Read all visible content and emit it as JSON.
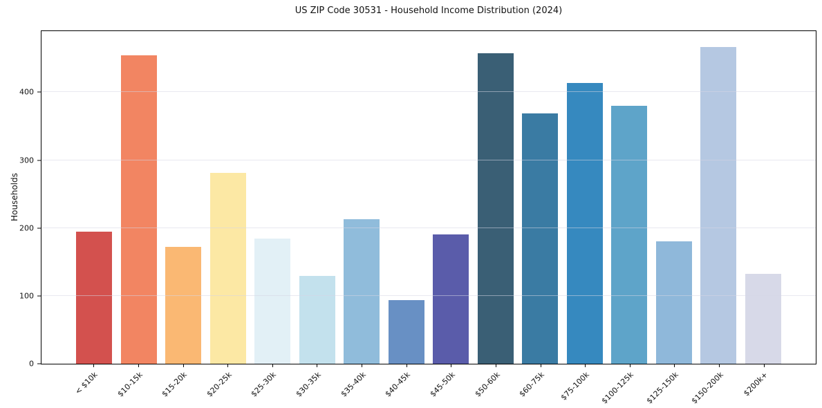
{
  "title": "US ZIP Code 30531 - Household Income Distribution (2024)",
  "chart_data": {
    "type": "bar",
    "title": "US ZIP Code 30531 - Household Income Distribution (2024)",
    "xlabel": "",
    "ylabel": "Households",
    "categories": [
      "< $10k",
      "$10-15k",
      "$15-20k",
      "$20-25k",
      "$25-30k",
      "$30-35k",
      "$35-40k",
      "$40-45k",
      "$45-50k",
      "$50-60k",
      "$60-75k",
      "$75-100k",
      "$100-125k",
      "$125-150k",
      "$150-200k",
      "$200k+"
    ],
    "values": [
      195,
      454,
      172,
      281,
      184,
      129,
      213,
      94,
      191,
      457,
      369,
      414,
      380,
      180,
      467,
      132
    ],
    "bar_colors": [
      "#d3514e",
      "#f28562",
      "#fab873",
      "#fce8a4",
      "#e2f0f6",
      "#c3e1ed",
      "#90bcdb",
      "#6890c4",
      "#5a5caa",
      "#3a5f75",
      "#3a7ba3",
      "#3689bf",
      "#5ea4c9",
      "#8fb8da",
      "#b5c8e2",
      "#d7d9e8"
    ],
    "ylim": [
      0,
      490
    ],
    "yticks": [
      0,
      100,
      200,
      300,
      400
    ],
    "gridlines": [
      100,
      200,
      300,
      400
    ],
    "grid": "horizontal",
    "legend": "none",
    "background_color": "#ffffff",
    "spine_color": "#000000"
  }
}
